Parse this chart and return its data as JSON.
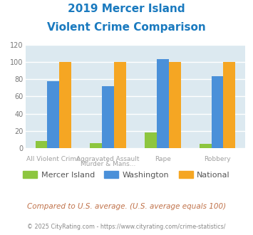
{
  "title_line1": "2019 Mercer Island",
  "title_line2": "Violent Crime Comparison",
  "title_color": "#1a7abf",
  "top_labels": [
    "",
    "Aggravated Assault",
    "",
    ""
  ],
  "bot_labels": [
    "All Violent Crime",
    "Murder & Mans...",
    "Rape",
    "Robbery"
  ],
  "mercer_island": [
    8,
    6,
    18,
    5
  ],
  "washington": [
    78,
    72,
    103,
    83
  ],
  "national": [
    100,
    100,
    100,
    100
  ],
  "mercer_color": "#8dc63f",
  "washington_color": "#4a90d9",
  "national_color": "#f5a623",
  "ylim": [
    0,
    120
  ],
  "yticks": [
    0,
    20,
    40,
    60,
    80,
    100,
    120
  ],
  "bg_color": "#dce9f0",
  "grid_color": "#ffffff",
  "footnote": "Compared to U.S. average. (U.S. average equals 100)",
  "footnote2": "© 2025 CityRating.com - https://www.cityrating.com/crime-statistics/",
  "footnote_color": "#c0724a",
  "footnote2_color": "#888888",
  "legend_labels": [
    "Mercer Island",
    "Washington",
    "National"
  ],
  "label_color": "#a0a0a0"
}
